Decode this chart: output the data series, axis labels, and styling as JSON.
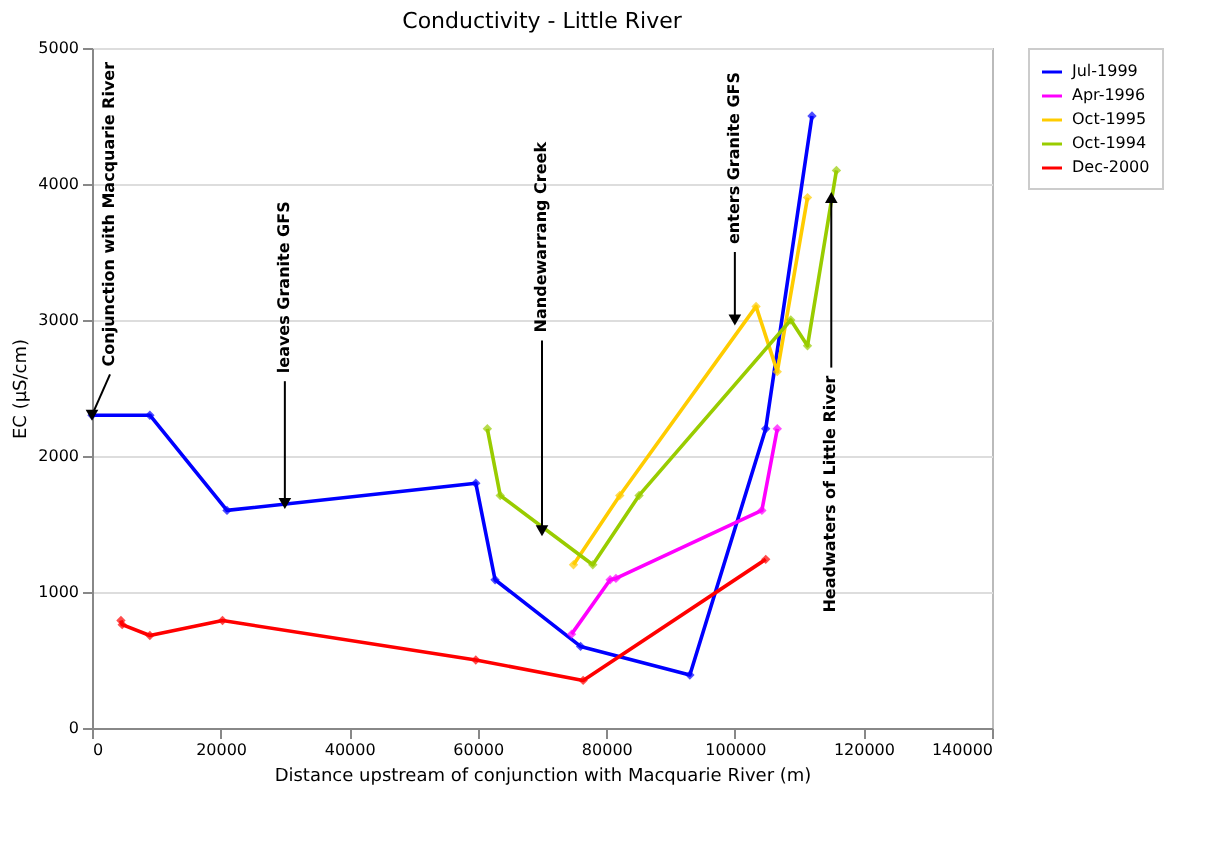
{
  "chart_data": {
    "type": "line",
    "title": "Conductivity - Little River",
    "xlabel": "Distance upstream of conjunction with Macquarie River (m)",
    "ylabel": "EC (µS/cm)",
    "xlim": [
      0,
      140000
    ],
    "xticks": [
      0,
      20000,
      40000,
      60000,
      80000,
      100000,
      120000,
      140000
    ],
    "ylim": [
      0,
      5000
    ],
    "yticks": [
      0,
      1000,
      2000,
      3000,
      4000,
      5000
    ],
    "grid": "y",
    "legend": "right",
    "marker": "diamond",
    "line_style": "solid",
    "series": [
      {
        "name": "Jul-1999",
        "color": "#0000ff",
        "x": [
          0,
          9000,
          21000,
          59700,
          62700,
          76000,
          93000,
          104800,
          112000
        ],
        "values": [
          2300,
          2300,
          1600,
          1800,
          1090,
          600,
          390,
          2200,
          4500
        ]
      },
      {
        "name": "Apr-1996",
        "color": "#ff00ff",
        "x": [
          74600,
          80600,
          81500,
          104200,
          106600
        ],
        "values": [
          690,
          1090,
          1100,
          1600,
          2200
        ]
      },
      {
        "name": "Oct-1995",
        "color": "#ffcc00",
        "x": [
          74900,
          82100,
          103300,
          106600,
          111300
        ],
        "values": [
          1200,
          1710,
          3100,
          2620,
          3900
        ]
      },
      {
        "name": "Oct-1994",
        "color": "#99cc00",
        "x": [
          61500,
          63500,
          77900,
          85100,
          108700,
          111300,
          115800
        ],
        "values": [
          2200,
          1710,
          1200,
          1710,
          3000,
          2810,
          4100
        ]
      },
      {
        "name": "Dec-2000",
        "color": "#ff0000",
        "x": [
          4500,
          4700,
          9000,
          20300,
          59700,
          76400,
          104800
        ],
        "values": [
          790,
          760,
          680,
          790,
          500,
          350,
          1240
        ]
      }
    ],
    "annotations": [
      {
        "text": "Conjunction with Macquarie River",
        "x": 0,
        "y": 2300
      },
      {
        "text": "leaves Granite GFS",
        "x": 30000,
        "y": 1650
      },
      {
        "text": "Nandewarrang Creek",
        "x": 70000,
        "y": 1450
      },
      {
        "text": "enters Granite GFS",
        "x": 100000,
        "y": 3000
      },
      {
        "text": "Headwaters of Little River",
        "x": 115000,
        "y": 3900
      }
    ]
  }
}
